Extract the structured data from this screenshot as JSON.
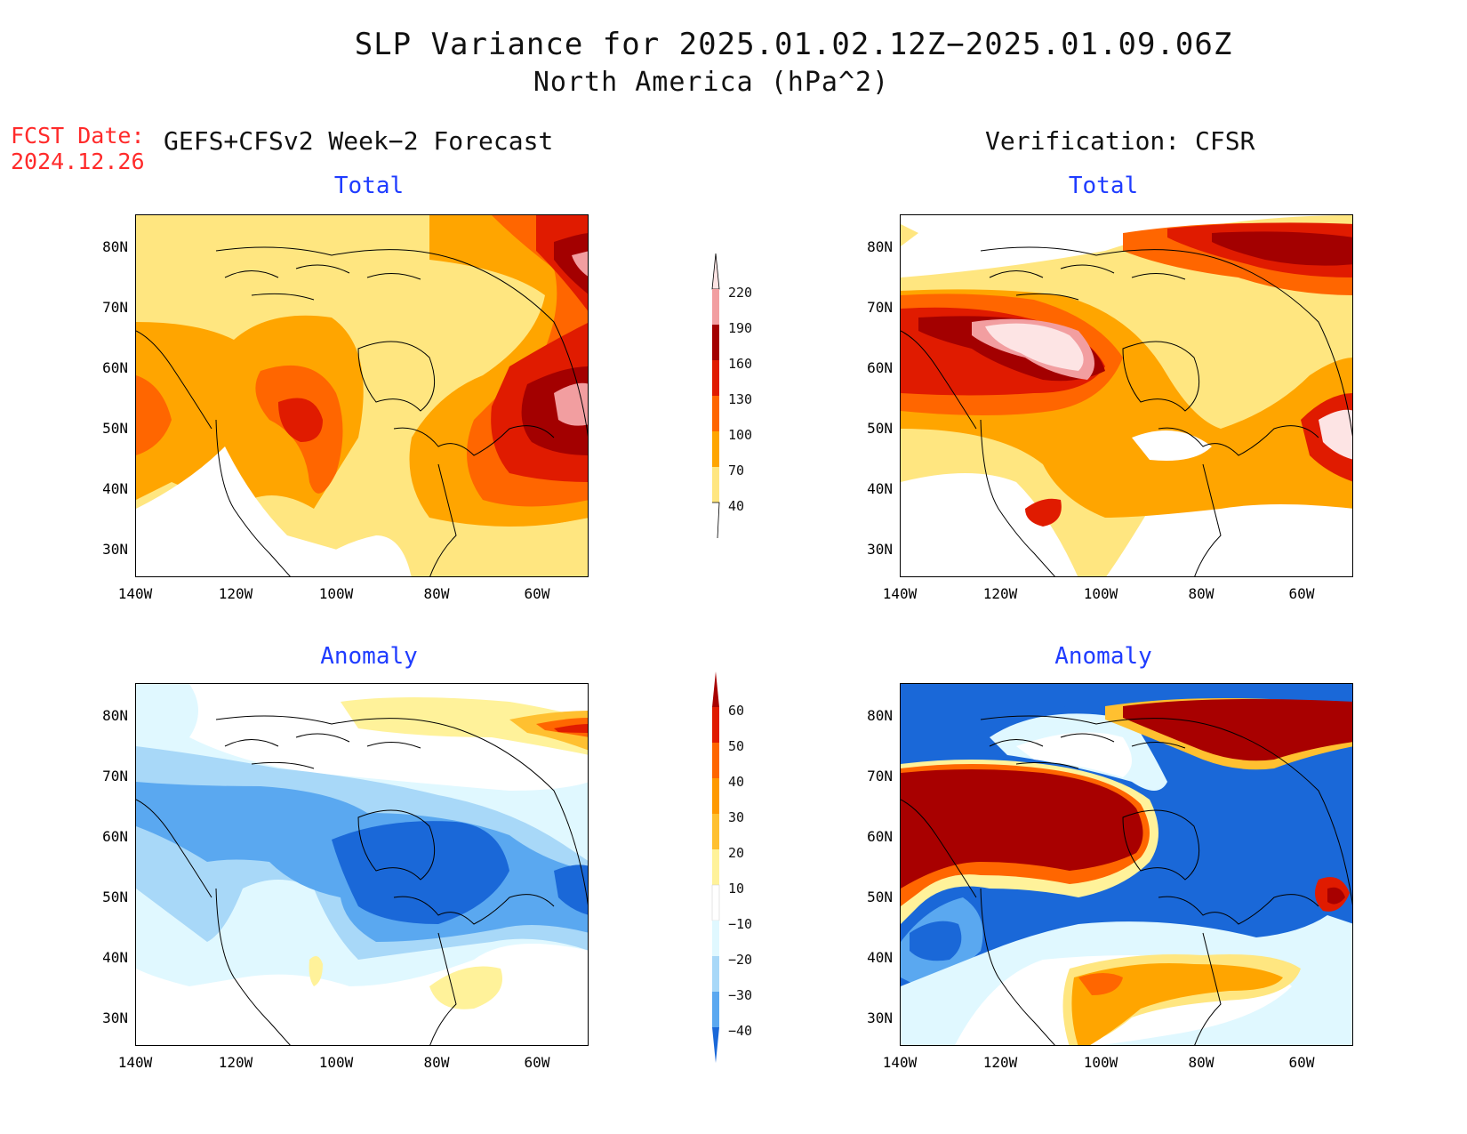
{
  "header": {
    "title": "SLP Variance for 2025.01.02.12Z−2025.01.09.06Z",
    "subtitle": "North America (hPa^2)",
    "fcst_label": "FCST Date:",
    "fcst_date": "2024.12.26",
    "left_heading": "GEFS+CFSv2 Week−2 Forecast",
    "right_heading": "Verification: CFSR"
  },
  "panels": {
    "forecast_total": {
      "title": "Total"
    },
    "verif_total": {
      "title": "Total"
    },
    "forecast_anomaly": {
      "title": "Anomaly"
    },
    "verif_anomaly": {
      "title": "Anomaly"
    }
  },
  "axes": {
    "lat_labels": [
      "80N",
      "70N",
      "60N",
      "50N",
      "40N",
      "30N"
    ],
    "lon_labels": [
      "140W",
      "120W",
      "100W",
      "80W",
      "60W"
    ],
    "lat_range": [
      25,
      85
    ],
    "lon_range": [
      -140,
      -50
    ]
  },
  "colorbars": {
    "total": {
      "levels": [
        "40",
        "70",
        "100",
        "130",
        "160",
        "190",
        "220"
      ],
      "colors": [
        "#ffe680",
        "#ffa500",
        "#ff6600",
        "#e01b00",
        "#a30000",
        "#f29ea0",
        "#fde4e4"
      ]
    },
    "anomaly": {
      "levels": [
        "60",
        "50",
        "40",
        "30",
        "20",
        "10",
        "−10",
        "−20",
        "−30",
        "−40"
      ],
      "colors": [
        "#a80000",
        "#e01b00",
        "#ff6600",
        "#ff9900",
        "#ffc030",
        "#fff29a",
        "#ffffff",
        "#e0f8ff",
        "#a8d8f8",
        "#5aa8f0",
        "#1a68d8"
      ]
    }
  },
  "colors": {
    "title_panel": "#1f3cff",
    "fcst_date": "#ff2a2a"
  }
}
